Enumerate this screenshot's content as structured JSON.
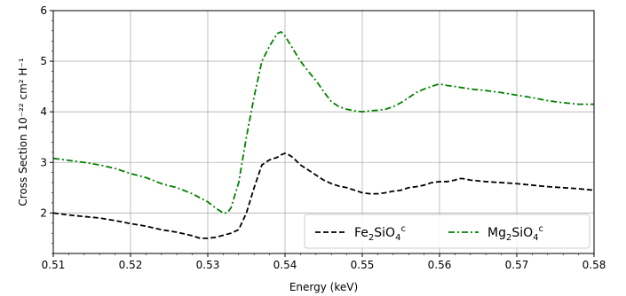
{
  "chart_data": {
    "type": "line",
    "xlabel": "Energy (keV)",
    "ylabel": "Cross Section 10⁻²² cm² H⁻¹",
    "xlim": [
      0.51,
      0.58
    ],
    "ylim": [
      1.2,
      6.0
    ],
    "xticks": [
      "0.51",
      "0.52",
      "0.53",
      "0.54",
      "0.55",
      "0.56",
      "0.57",
      "0.58"
    ],
    "yticks": [
      "2",
      "3",
      "4",
      "5",
      "6"
    ],
    "grid": true,
    "legend_position": "lower-right",
    "series": [
      {
        "name": "Fe₂SiO₄ᶜ",
        "legend": {
          "base1": "Fe",
          "sub1": "2",
          "base2": "SiO",
          "sub2": "4",
          "sup": "c"
        },
        "color": "#000000",
        "style": "dashed",
        "x": [
          0.51,
          0.512,
          0.514,
          0.516,
          0.518,
          0.52,
          0.522,
          0.524,
          0.526,
          0.528,
          0.529,
          0.53,
          0.531,
          0.532,
          0.533,
          0.534,
          0.535,
          0.536,
          0.537,
          0.538,
          0.539,
          0.5395,
          0.54,
          0.5405,
          0.541,
          0.542,
          0.543,
          0.544,
          0.545,
          0.546,
          0.547,
          0.548,
          0.549,
          0.55,
          0.551,
          0.552,
          0.553,
          0.554,
          0.555,
          0.556,
          0.557,
          0.558,
          0.559,
          0.56,
          0.561,
          0.562,
          0.5625,
          0.563,
          0.564,
          0.566,
          0.568,
          0.57,
          0.572,
          0.574,
          0.576,
          0.578,
          0.58
        ],
        "y": [
          2.0,
          1.96,
          1.93,
          1.9,
          1.85,
          1.79,
          1.74,
          1.67,
          1.62,
          1.55,
          1.5,
          1.5,
          1.52,
          1.56,
          1.6,
          1.67,
          2.0,
          2.5,
          2.95,
          3.05,
          3.1,
          3.15,
          3.18,
          3.15,
          3.1,
          2.95,
          2.85,
          2.75,
          2.65,
          2.58,
          2.53,
          2.5,
          2.45,
          2.4,
          2.38,
          2.38,
          2.4,
          2.43,
          2.45,
          2.5,
          2.52,
          2.55,
          2.6,
          2.62,
          2.62,
          2.65,
          2.68,
          2.68,
          2.65,
          2.62,
          2.6,
          2.58,
          2.55,
          2.52,
          2.5,
          2.48,
          2.45
        ]
      },
      {
        "name": "Mg₂SiO₄ᶜ",
        "legend": {
          "base1": "Mg",
          "sub1": "2",
          "base2": "SiO",
          "sub2": "4",
          "sup": "c"
        },
        "color": "#008000",
        "style": "dashdot",
        "x": [
          0.51,
          0.512,
          0.514,
          0.516,
          0.518,
          0.52,
          0.522,
          0.524,
          0.526,
          0.528,
          0.53,
          0.531,
          0.532,
          0.5325,
          0.533,
          0.534,
          0.535,
          0.536,
          0.537,
          0.538,
          0.539,
          0.5395,
          0.54,
          0.541,
          0.542,
          0.543,
          0.544,
          0.545,
          0.546,
          0.547,
          0.548,
          0.549,
          0.55,
          0.551,
          0.552,
          0.553,
          0.554,
          0.555,
          0.556,
          0.557,
          0.558,
          0.559,
          0.5595,
          0.56,
          0.561,
          0.562,
          0.564,
          0.566,
          0.568,
          0.57,
          0.572,
          0.574,
          0.576,
          0.578,
          0.58
        ],
        "y": [
          3.08,
          3.04,
          3.0,
          2.95,
          2.88,
          2.78,
          2.7,
          2.58,
          2.5,
          2.38,
          2.22,
          2.1,
          2.0,
          2.0,
          2.1,
          2.6,
          3.5,
          4.3,
          5.0,
          5.3,
          5.55,
          5.58,
          5.5,
          5.25,
          5.0,
          4.8,
          4.62,
          4.4,
          4.2,
          4.1,
          4.05,
          4.02,
          4.0,
          4.02,
          4.03,
          4.05,
          4.1,
          4.18,
          4.28,
          4.38,
          4.45,
          4.5,
          4.53,
          4.55,
          4.52,
          4.5,
          4.45,
          4.42,
          4.38,
          4.33,
          4.28,
          4.22,
          4.18,
          4.15,
          4.15
        ]
      }
    ]
  }
}
